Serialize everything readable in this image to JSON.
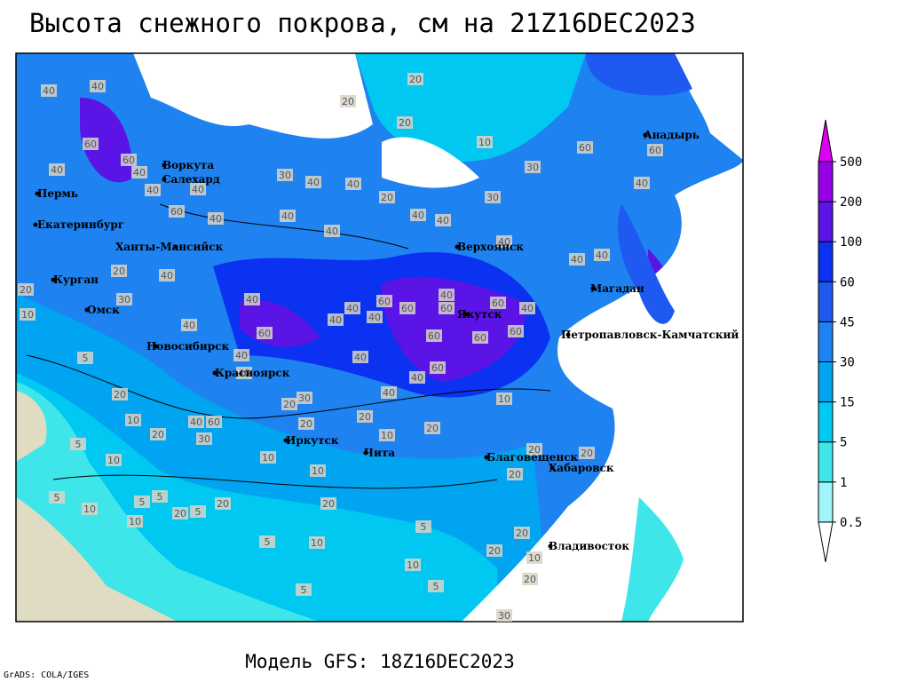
{
  "header": {
    "title": "Высота снежного покрова, см на 21Z16DEC2023"
  },
  "footer": {
    "model": "Модель GFS: 18Z16DEC2023",
    "credit": "GrADS: COLA/IGES"
  },
  "cities": [
    "Воркута",
    "Салехард",
    "Пермь",
    "Екатеринбург",
    "Ханты-Мансийск",
    "Курган",
    "Омск",
    "Новосибирск",
    "Красноярск",
    "Иркутск",
    "Чита",
    "Благовещенск",
    "Хабаровск",
    "Владивосток",
    "Верхоянск",
    "Якутск",
    "Магадан",
    "Петропавловск-Камчатский",
    "Анадырь"
  ],
  "contour_labels": [
    40,
    40,
    20,
    20,
    20,
    10,
    60,
    60,
    40,
    40,
    40,
    60,
    40,
    30,
    40,
    40,
    20,
    40,
    40,
    40,
    40,
    40,
    40,
    40,
    40,
    60,
    60,
    30,
    30,
    40,
    20,
    40,
    20,
    10,
    30,
    40,
    40,
    60,
    60,
    60,
    40,
    60,
    60,
    60,
    60,
    40,
    60,
    40,
    40,
    40,
    40,
    40,
    60,
    40,
    40,
    5,
    20,
    10,
    20,
    30,
    40,
    60,
    20,
    30,
    20,
    20,
    10,
    40,
    20,
    10,
    10,
    20,
    20,
    10,
    5,
    5,
    10,
    5,
    5,
    10,
    20,
    5,
    5,
    10,
    10,
    5,
    5,
    20,
    20,
    20,
    20,
    20,
    30,
    20,
    10,
    10,
    5
  ],
  "legend": {
    "levels": [
      0.5,
      1,
      5,
      15,
      30,
      45,
      60,
      100,
      200,
      500
    ],
    "colors": [
      "#ffffff",
      "#a0f5fa",
      "#3ee6ea",
      "#00c8f0",
      "#00a4f0",
      "#1e82f0",
      "#1e5af0",
      "#0a32f0",
      "#5a14e6",
      "#9600e6",
      "#dc00f0"
    ]
  }
}
